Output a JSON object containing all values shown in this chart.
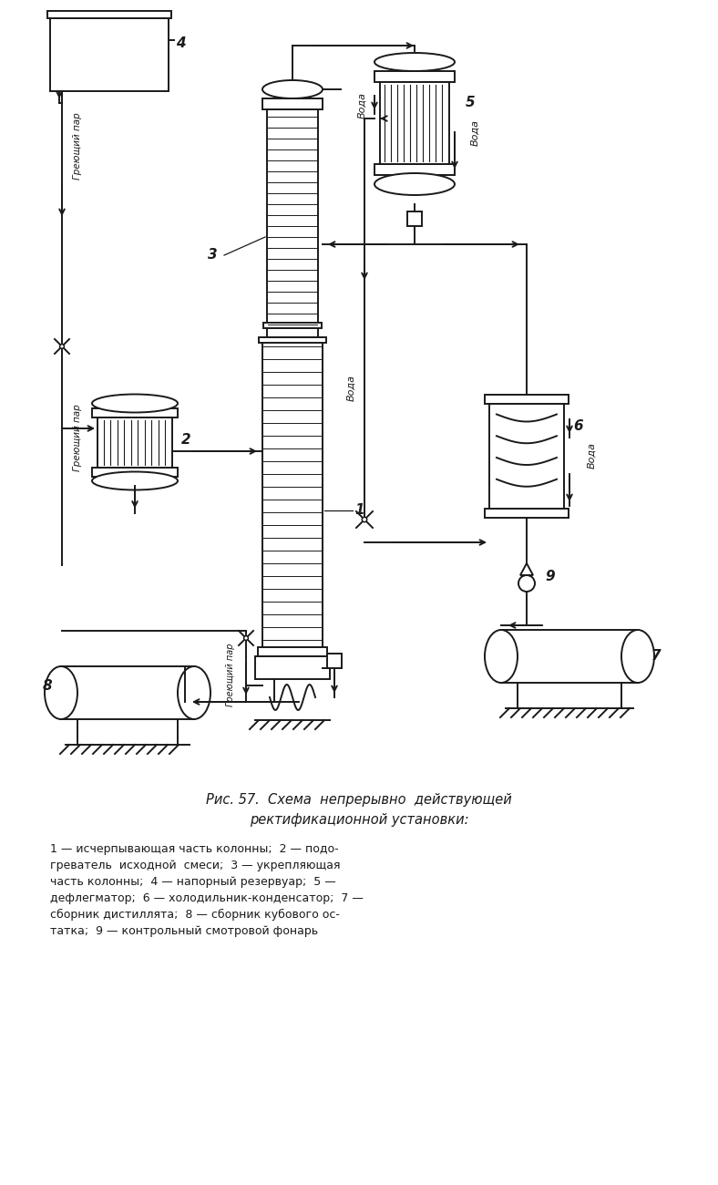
{
  "bg_color": "#ffffff",
  "line_color": "#1a1a1a",
  "lw": 1.4,
  "caption_line1": "Рис. 57.  Схема  непрерывно  действующей",
  "caption_line2": "ректификационной установки:",
  "caption_lines": [
    "1 — исчерпывающая часть колонны;  2 — подо-",
    "греватель  исходной  смеси;  3 — укрепляющая",
    "часть колонны;  4 — напорный резервуар;  5 —",
    "дефлегматор;  6 — холодильник-конденсатор;  7 —",
    "сборник дистиллята;  8 — сборник кубового ос-",
    "татка;  9 — контрольный смотровой фонарь"
  ]
}
